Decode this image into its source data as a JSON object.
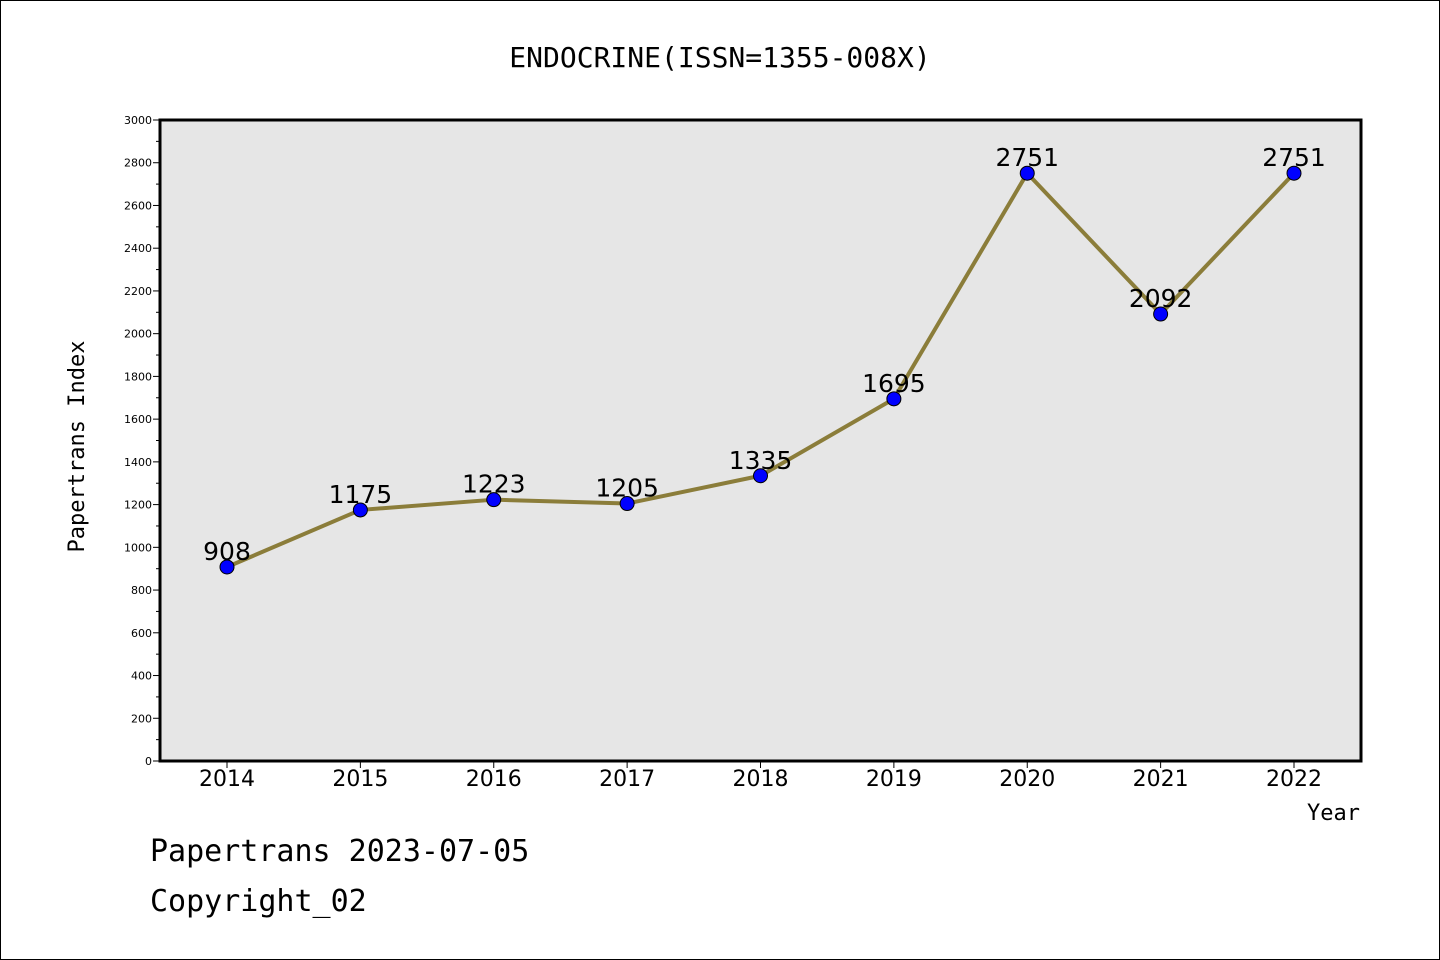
{
  "chart_data": {
    "type": "line",
    "title": "ENDOCRINE(ISSN=1355-008X)",
    "xlabel": "Year",
    "ylabel": "Papertrans Index",
    "categories": [
      "2014",
      "2015",
      "2016",
      "2017",
      "2018",
      "2019",
      "2020",
      "2021",
      "2022"
    ],
    "series": [
      {
        "values": [
          908,
          1175,
          1223,
          1205,
          1335,
          1695,
          2751,
          2092,
          2751
        ]
      }
    ],
    "data_labels": [
      "908",
      "1175",
      "1223",
      "1205",
      "1335",
      "1695",
      "2751",
      "2092",
      "2751"
    ],
    "ylim": [
      0,
      3000
    ],
    "yticks": [
      0,
      200,
      400,
      600,
      800,
      1000,
      1200,
      1400,
      1600,
      1800,
      2000,
      2200,
      2400,
      2600,
      2800,
      3000
    ],
    "grid": false,
    "colors": {
      "plot_background": "#e6e6e6",
      "line": "#8b7d3a",
      "marker": "#0000ff"
    }
  },
  "footer": {
    "line1": "Papertrans 2023-07-05",
    "line2": "Copyright_02"
  }
}
